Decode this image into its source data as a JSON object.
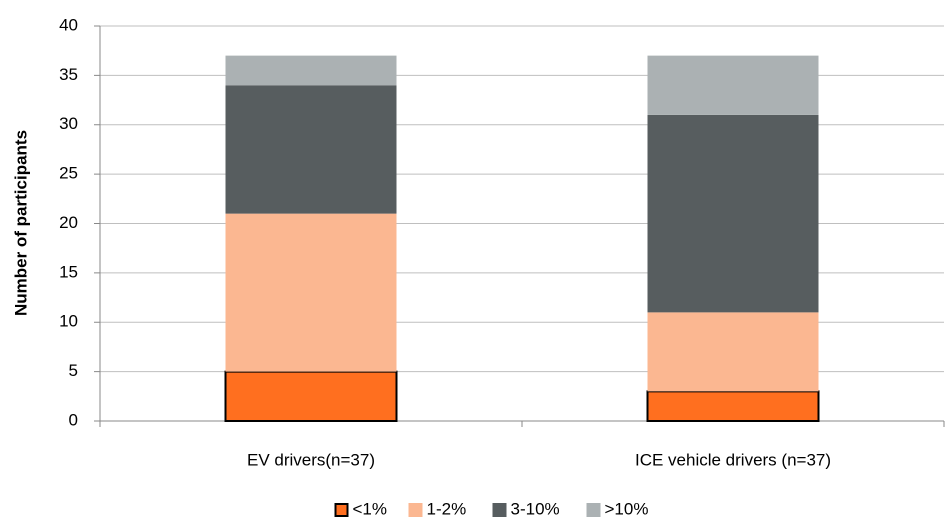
{
  "chart_data": {
    "type": "stacked_bar",
    "y_label": "Number of participants",
    "categories": [
      "EV drivers(n=37)",
      "ICE vehicle drivers (n=37)"
    ],
    "series": [
      {
        "name": "<1%",
        "color": "#ff6f1f",
        "edgecolor": "#000000",
        "values": [
          5,
          3
        ]
      },
      {
        "name": "1-2%",
        "color": "#fbb791",
        "values": [
          16,
          8
        ]
      },
      {
        "name": "3-10%",
        "color": "#575d5f",
        "values": [
          13,
          20
        ]
      },
      {
        "name": ">10%",
        "color": "#abb1b3",
        "values": [
          3,
          6
        ]
      }
    ],
    "ylim": [
      0,
      40
    ],
    "yticks": [
      0,
      5,
      10,
      15,
      20,
      25,
      30,
      35,
      40
    ],
    "grid": true,
    "legend": "bottom"
  }
}
